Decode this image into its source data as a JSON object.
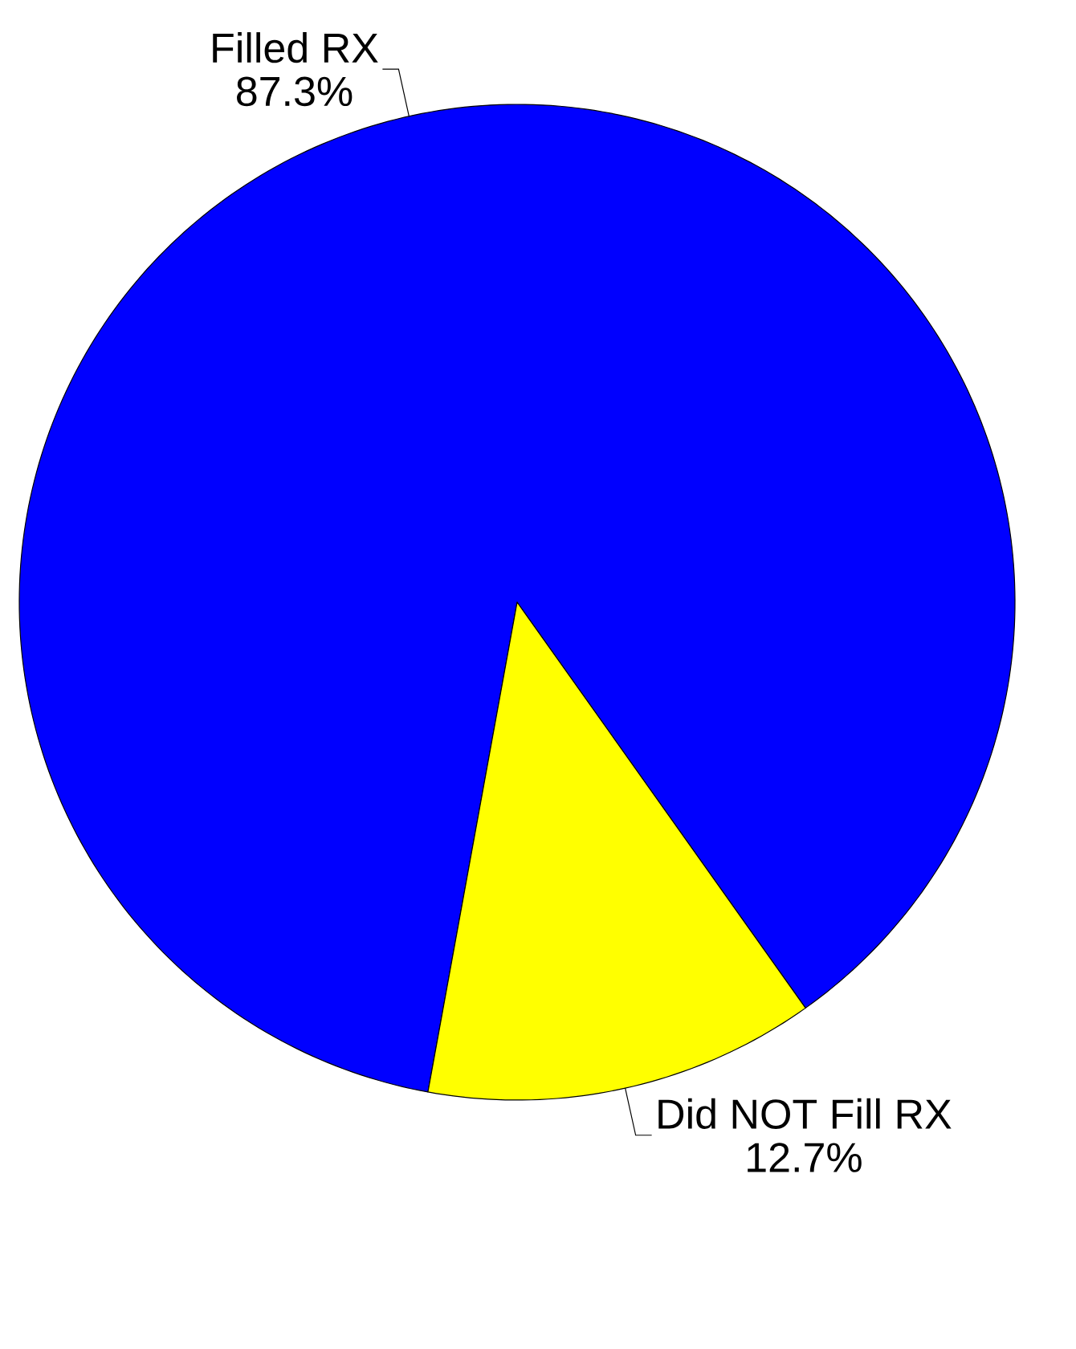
{
  "chart_data": {
    "type": "pie",
    "categories": [
      "Filled RX",
      "Did NOT Fill RX"
    ],
    "values": [
      87.3,
      12.7
    ],
    "value_labels": [
      "87.3%",
      "12.7%"
    ],
    "colors": [
      "#0000ff",
      "#ffff00"
    ]
  }
}
